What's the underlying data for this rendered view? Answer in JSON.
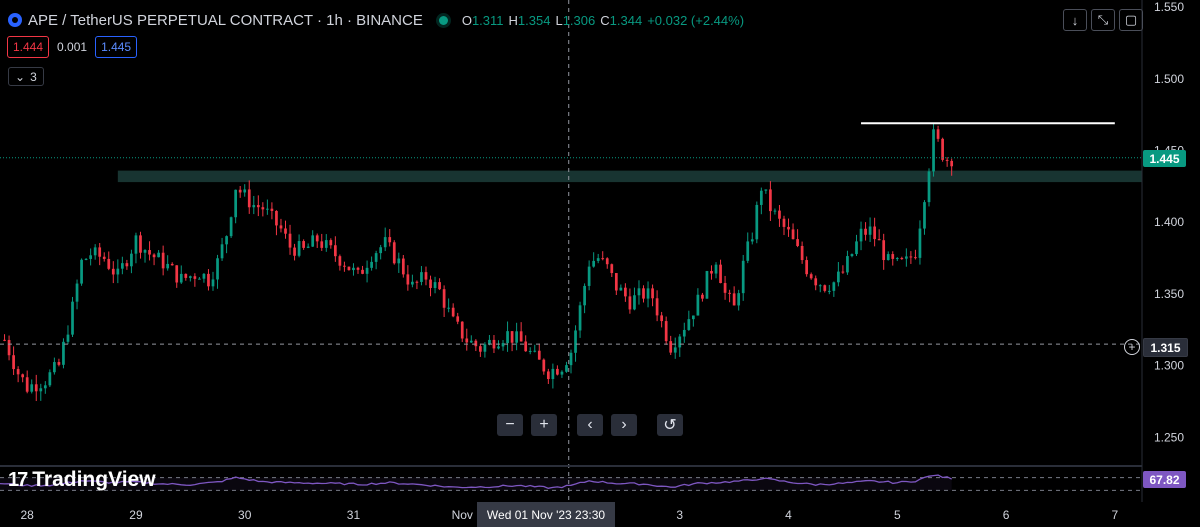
{
  "header": {
    "symbol_title": "APE / TetherUS PERPETUAL CONTRACT · 1h · BINANCE",
    "ohlc": {
      "o_label": "O",
      "o_value": "1.311",
      "h_label": "H",
      "h_value": "1.354",
      "l_label": "L",
      "l_value": "1.306",
      "c_label": "C",
      "c_value": "1.344",
      "change": "+0.032 (+2.44%)"
    },
    "sell_price": "1.444",
    "spread": "0.001",
    "buy_price": "1.445",
    "indicators_count": "3"
  },
  "toolbar": {
    "download_icon": "arrow-down-icon",
    "fullscreen_icon": "expand-icon",
    "snapshot_icon": "camera-icon"
  },
  "nav_buttons": {
    "zoom_out": "−",
    "zoom_in": "+",
    "scroll_left": "‹",
    "scroll_right": "›",
    "reset": "↺"
  },
  "branding": {
    "logo_text": "TradingView",
    "logo_mark": "17"
  },
  "colors": {
    "up": "#089981",
    "down": "#f23645",
    "rsi": "#7e57c2",
    "zone": "#1c3d3a",
    "background": "#000000"
  },
  "chart_data": {
    "type": "candlestick",
    "symbol": "APE / TetherUS PERPETUAL CONTRACT",
    "interval": "1h",
    "exchange": "BINANCE",
    "y_axis": {
      "ticks": [
        "1.550",
        "1.500",
        "1.450",
        "1.400",
        "1.350",
        "1.300",
        "1.250"
      ],
      "tick_values": [
        1.55,
        1.5,
        1.45,
        1.4,
        1.35,
        1.3,
        1.25
      ],
      "range": [
        1.23,
        1.555
      ]
    },
    "x_axis": {
      "ticks": [
        "28",
        "29",
        "30",
        "31",
        "Nov",
        "2",
        "3",
        "4",
        "5",
        "6",
        "7"
      ],
      "tick_index": [
        0,
        24,
        48,
        72,
        96,
        120,
        144,
        168,
        192,
        216,
        240
      ],
      "index_range": [
        -6,
        246
      ]
    },
    "last_price": {
      "value": 1.445,
      "label": "1.445"
    },
    "crosshair": {
      "price": 1.315,
      "price_label": "1.315",
      "time_label": "Wed 01 Nov '23   23:30",
      "index": 119.5
    },
    "zone": {
      "from_index": 20,
      "to_index": 246,
      "low": 1.428,
      "high": 1.436
    },
    "resistance_line": {
      "from_index": 184,
      "to_index": 240,
      "value": 1.469
    },
    "key_points": [
      [
        -5,
        1.318
      ],
      [
        -2,
        1.295
      ],
      [
        0,
        1.285
      ],
      [
        4,
        1.29
      ],
      [
        7,
        1.3
      ],
      [
        10,
        1.34
      ],
      [
        12,
        1.372
      ],
      [
        14,
        1.378
      ],
      [
        17,
        1.375
      ],
      [
        20,
        1.362
      ],
      [
        24,
        1.388
      ],
      [
        27,
        1.378
      ],
      [
        30,
        1.372
      ],
      [
        34,
        1.36
      ],
      [
        38,
        1.365
      ],
      [
        40,
        1.36
      ],
      [
        42,
        1.372
      ],
      [
        44,
        1.392
      ],
      [
        46,
        1.425
      ],
      [
        48,
        1.418
      ],
      [
        50,
        1.412
      ],
      [
        52,
        1.41
      ],
      [
        54,
        1.402
      ],
      [
        56,
        1.395
      ],
      [
        58,
        1.383
      ],
      [
        61,
        1.38
      ],
      [
        64,
        1.388
      ],
      [
        67,
        1.38
      ],
      [
        70,
        1.372
      ],
      [
        73,
        1.362
      ],
      [
        76,
        1.378
      ],
      [
        79,
        1.385
      ],
      [
        82,
        1.372
      ],
      [
        85,
        1.355
      ],
      [
        88,
        1.362
      ],
      [
        91,
        1.352
      ],
      [
        94,
        1.33
      ],
      [
        97,
        1.318
      ],
      [
        100,
        1.312
      ],
      [
        103,
        1.318
      ],
      [
        106,
        1.322
      ],
      [
        109,
        1.316
      ],
      [
        112,
        1.305
      ],
      [
        115,
        1.296
      ],
      [
        118,
        1.3
      ],
      [
        120,
        1.31
      ],
      [
        122,
        1.34
      ],
      [
        124,
        1.372
      ],
      [
        126,
        1.375
      ],
      [
        128,
        1.368
      ],
      [
        130,
        1.355
      ],
      [
        133,
        1.345
      ],
      [
        136,
        1.35
      ],
      [
        138,
        1.348
      ],
      [
        140,
        1.33
      ],
      [
        142,
        1.314
      ],
      [
        145,
        1.328
      ],
      [
        148,
        1.345
      ],
      [
        150,
        1.36
      ],
      [
        152,
        1.375
      ],
      [
        154,
        1.35
      ],
      [
        156,
        1.34
      ],
      [
        158,
        1.37
      ],
      [
        160,
        1.392
      ],
      [
        162,
        1.425
      ],
      [
        164,
        1.41
      ],
      [
        166,
        1.4
      ],
      [
        168,
        1.392
      ],
      [
        170,
        1.38
      ],
      [
        172,
        1.368
      ],
      [
        174,
        1.36
      ],
      [
        176,
        1.356
      ],
      [
        178,
        1.358
      ],
      [
        180,
        1.365
      ],
      [
        182,
        1.378
      ],
      [
        184,
        1.392
      ],
      [
        186,
        1.394
      ],
      [
        188,
        1.385
      ],
      [
        190,
        1.372
      ],
      [
        192,
        1.37
      ],
      [
        194,
        1.372
      ],
      [
        196,
        1.38
      ],
      [
        198,
        1.42
      ],
      [
        199,
        1.44
      ],
      [
        200,
        1.46
      ],
      [
        201,
        1.455
      ],
      [
        202,
        1.448
      ],
      [
        203,
        1.444
      ],
      [
        204,
        1.445
      ]
    ],
    "rsi": {
      "value": 67.82,
      "label": "67.82",
      "overbought": 70,
      "oversold": 30,
      "points": [
        [
          -6,
          52
        ],
        [
          0,
          45
        ],
        [
          6,
          47
        ],
        [
          12,
          60
        ],
        [
          18,
          55
        ],
        [
          24,
          56
        ],
        [
          30,
          50
        ],
        [
          36,
          48
        ],
        [
          42,
          56
        ],
        [
          46,
          70
        ],
        [
          52,
          57
        ],
        [
          58,
          54
        ],
        [
          66,
          52
        ],
        [
          74,
          49
        ],
        [
          80,
          54
        ],
        [
          88,
          47
        ],
        [
          94,
          40
        ],
        [
          100,
          41
        ],
        [
          108,
          45
        ],
        [
          116,
          38
        ],
        [
          120,
          45
        ],
        [
          124,
          60
        ],
        [
          130,
          52
        ],
        [
          136,
          50
        ],
        [
          142,
          40
        ],
        [
          148,
          52
        ],
        [
          154,
          56
        ],
        [
          160,
          62
        ],
        [
          162,
          68
        ],
        [
          168,
          56
        ],
        [
          174,
          48
        ],
        [
          180,
          52
        ],
        [
          186,
          59
        ],
        [
          192,
          54
        ],
        [
          196,
          60
        ],
        [
          200,
          78
        ],
        [
          202,
          72
        ],
        [
          204,
          67.82
        ]
      ]
    }
  }
}
